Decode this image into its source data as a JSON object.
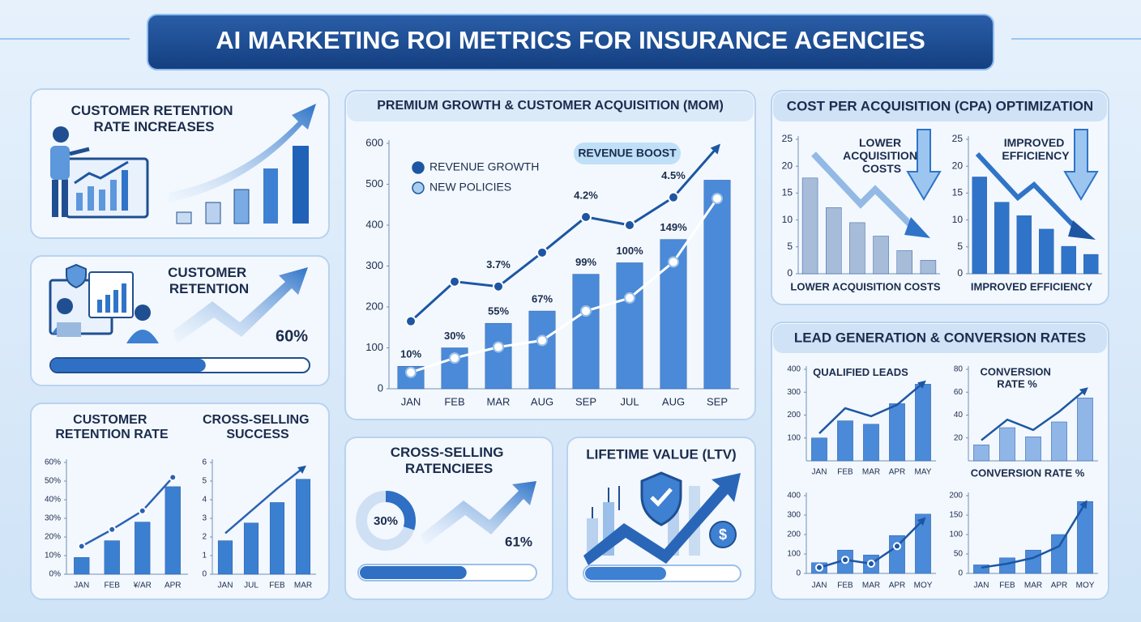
{
  "title": "AI MARKETING ROI METRICS FOR INSURANCE AGENCIES",
  "cards": {
    "retention_increases": {
      "title": "CUSTOMER RETENTION RATE INCREASES"
    },
    "retention": {
      "title": "CUSTOMER RETENTION",
      "value": 60,
      "value_label": "60%"
    },
    "cross_selling": {
      "title": "CROSS-SELLING RATENCIEES",
      "donut_value": 30,
      "donut_label": "30%",
      "value": 61,
      "value_label": "61%"
    },
    "ltv": {
      "title": "LIFETIME VALUE (LTV)"
    },
    "cpa": {
      "title": "COST PER ACQUISITION (CPA) OPTIMIZATION"
    },
    "leads": {
      "title": "LEAD GENERATION & CONVERSION RATES"
    }
  },
  "chart_data": [
    {
      "type": "bar",
      "title": "PREMIUM GROWTH & CUSTOMER ACQUISITION (MOM)",
      "categories": [
        "JAN",
        "FEB",
        "MAR",
        "AUG",
        "SEP",
        "JUL",
        "AUG",
        "SEP"
      ],
      "series": [
        {
          "name": "REVENUE GROWTH",
          "type": "line",
          "color": "#1d56a3",
          "values": [
            165,
            262,
            250,
            333,
            420,
            400,
            468,
            590
          ],
          "markers": true,
          "arrow": true
        },
        {
          "name": "NEW POLICIES",
          "type": "bar",
          "color": "#4a8ad8",
          "values": [
            55,
            100,
            160,
            190,
            280,
            308,
            365,
            510
          ]
        },
        {
          "type": "line",
          "color": "#ffffff",
          "values": [
            40,
            75,
            102,
            118,
            190,
            222,
            310,
            465
          ],
          "markers": true
        }
      ],
      "bar_annotations": [
        "10%",
        "30%",
        "55%",
        "67%",
        "99%",
        "100%",
        "149%",
        null
      ],
      "line_annotations": [
        null,
        null,
        "3.7%",
        null,
        "4.2%",
        null,
        "4.5%",
        null
      ],
      "annotation": "REVENUE BOOST",
      "legend": "top-left",
      "ylim": [
        0,
        600
      ],
      "yticks": [
        0,
        100,
        200,
        300,
        400,
        500,
        600
      ]
    },
    {
      "type": "bar",
      "title": "CUSTOMER RETENTION RATE",
      "categories": [
        "JAN",
        "FEB",
        "¥/AR",
        "APR"
      ],
      "series": [
        {
          "type": "bar",
          "color": "#3b7fd1",
          "values": [
            9,
            18,
            28,
            47
          ]
        },
        {
          "type": "line",
          "color": "#2a62b3",
          "values": [
            15,
            24,
            34,
            52
          ],
          "markers": true
        }
      ],
      "ylim": [
        0,
        60
      ],
      "yticks": [
        {
          "value": 0,
          "label": "0%"
        },
        {
          "value": 10,
          "label": "10%"
        },
        {
          "value": 20,
          "label": "20%"
        },
        {
          "value": 30,
          "label": "30%"
        },
        {
          "value": 40,
          "label": "40%"
        },
        {
          "value": 50,
          "label": "50%"
        },
        {
          "value": 60,
          "label": "60%"
        }
      ]
    },
    {
      "type": "bar",
      "title": "CROSS-SELLING SUCCESS",
      "categories": [
        "JAN",
        "JUL",
        "FEB",
        "MAR"
      ],
      "series": [
        {
          "type": "bar",
          "color": "#3b7fd1",
          "values": [
            1.8,
            2.75,
            3.85,
            5.1
          ]
        },
        {
          "type": "line",
          "color": "#2a62b3",
          "values": [
            2.2,
            3.4,
            4.6,
            5.7
          ],
          "arrow": true
        }
      ],
      "ylim": [
        0,
        6
      ],
      "yticks": [
        0,
        1,
        2,
        3,
        4,
        5,
        6
      ]
    },
    {
      "type": "bar",
      "title": "LOWER ACQUISITION COSTS",
      "xlabel": "LOWER ACQUISITION COSTS",
      "series": [
        {
          "type": "bar",
          "color": "#a7bcd9",
          "values": [
            17.8,
            12.3,
            9.5,
            7,
            4.3,
            2.5
          ]
        }
      ],
      "ylim": [
        0,
        25
      ],
      "yticks": [
        0,
        5,
        10,
        15,
        20,
        25
      ]
    },
    {
      "type": "bar",
      "title": "IMPROVED EFFICIENCY",
      "xlabel": "IMPROVED EFFICIENCY",
      "series": [
        {
          "type": "bar",
          "color": "#2f74c8",
          "values": [
            18,
            13.3,
            10.8,
            8.3,
            5.1,
            3.6
          ]
        }
      ],
      "ylim": [
        0,
        25
      ],
      "yticks": [
        0,
        5,
        10,
        15,
        20,
        25
      ]
    },
    {
      "type": "bar",
      "title": "QUALIFIED LEADS",
      "categories": [
        "JAN",
        "FEB",
        "MAR",
        "APR",
        "MAY"
      ],
      "series": [
        {
          "type": "bar",
          "color": "#4a8ad8",
          "values": [
            100,
            175,
            160,
            250,
            335
          ]
        },
        {
          "type": "line",
          "color": "#1d56a3",
          "values": [
            120,
            230,
            195,
            245,
            340
          ],
          "arrow": true
        }
      ],
      "ylim": [
        0,
        400
      ],
      "yticks": [
        100,
        200,
        300,
        400
      ]
    },
    {
      "type": "bar",
      "title": "CONVERSION RATE %",
      "xlabel": "CONVERSION RATE %",
      "series": [
        {
          "type": "bar",
          "color": "#8fb6e6",
          "values": [
            14,
            29,
            21,
            34,
            55
          ]
        },
        {
          "type": "line",
          "color": "#1d56a3",
          "values": [
            18,
            36,
            27,
            43,
            62
          ],
          "arrow": true
        }
      ],
      "ylim": [
        0,
        80
      ],
      "yticks": [
        20,
        40,
        60,
        80
      ]
    },
    {
      "type": "bar",
      "categories": [
        "JAN",
        "FEB",
        "MAR",
        "APR",
        "MOY"
      ],
      "series": [
        {
          "type": "bar",
          "color": "#4a8ad8",
          "values": [
            55,
            120,
            95,
            195,
            305
          ]
        },
        {
          "type": "line",
          "color": "#1d56a3",
          "values": [
            30,
            70,
            50,
            140,
            275
          ],
          "markers": true,
          "arrow": true
        }
      ],
      "ylim": [
        0,
        400
      ],
      "yticks": [
        0,
        100,
        200,
        300,
        400
      ]
    },
    {
      "type": "bar",
      "categories": [
        "JAN",
        "FEB",
        "MAR",
        "APR",
        "MOY"
      ],
      "series": [
        {
          "type": "bar",
          "color": "#4a8ad8",
          "values": [
            22,
            40,
            60,
            100,
            185
          ]
        },
        {
          "type": "line",
          "color": "#1d56a3",
          "values": [
            15,
            25,
            40,
            70,
            180
          ],
          "arrow": true
        }
      ],
      "ylim": [
        0,
        200
      ],
      "yticks": [
        0,
        50,
        100,
        150,
        200
      ]
    }
  ]
}
